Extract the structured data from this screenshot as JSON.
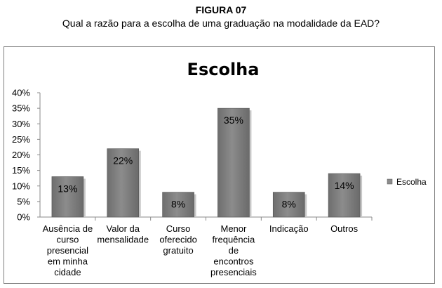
{
  "figure": {
    "label": "FIGURA 07",
    "caption": "Qual a razão para a escolha de uma graduação na modalidade da EAD?"
  },
  "chart_data": {
    "type": "bar",
    "title": "Escolha",
    "categories": [
      [
        "Ausência de",
        "curso",
        "presencial",
        "em minha",
        "cidade"
      ],
      [
        "Valor da",
        "mensalidade"
      ],
      [
        "Curso",
        "oferecido",
        "gratuito"
      ],
      [
        "Menor",
        "frequência",
        "de",
        "encontros",
        "presenciais"
      ],
      [
        "Indicação"
      ],
      [
        "Outros"
      ]
    ],
    "series": [
      {
        "name": "Escolha",
        "values": [
          13,
          22,
          8,
          35,
          8,
          14
        ],
        "data_labels": [
          "13%",
          "22%",
          "8%",
          "35%",
          "8%",
          "14%"
        ]
      }
    ],
    "ylim": [
      0,
      40
    ],
    "yticks": [
      "0%",
      "5%",
      "10%",
      "15%",
      "20%",
      "25%",
      "30%",
      "35%",
      "40%"
    ],
    "grid": false,
    "legend_position": "right",
    "bar_color": "#8c8c8c"
  }
}
